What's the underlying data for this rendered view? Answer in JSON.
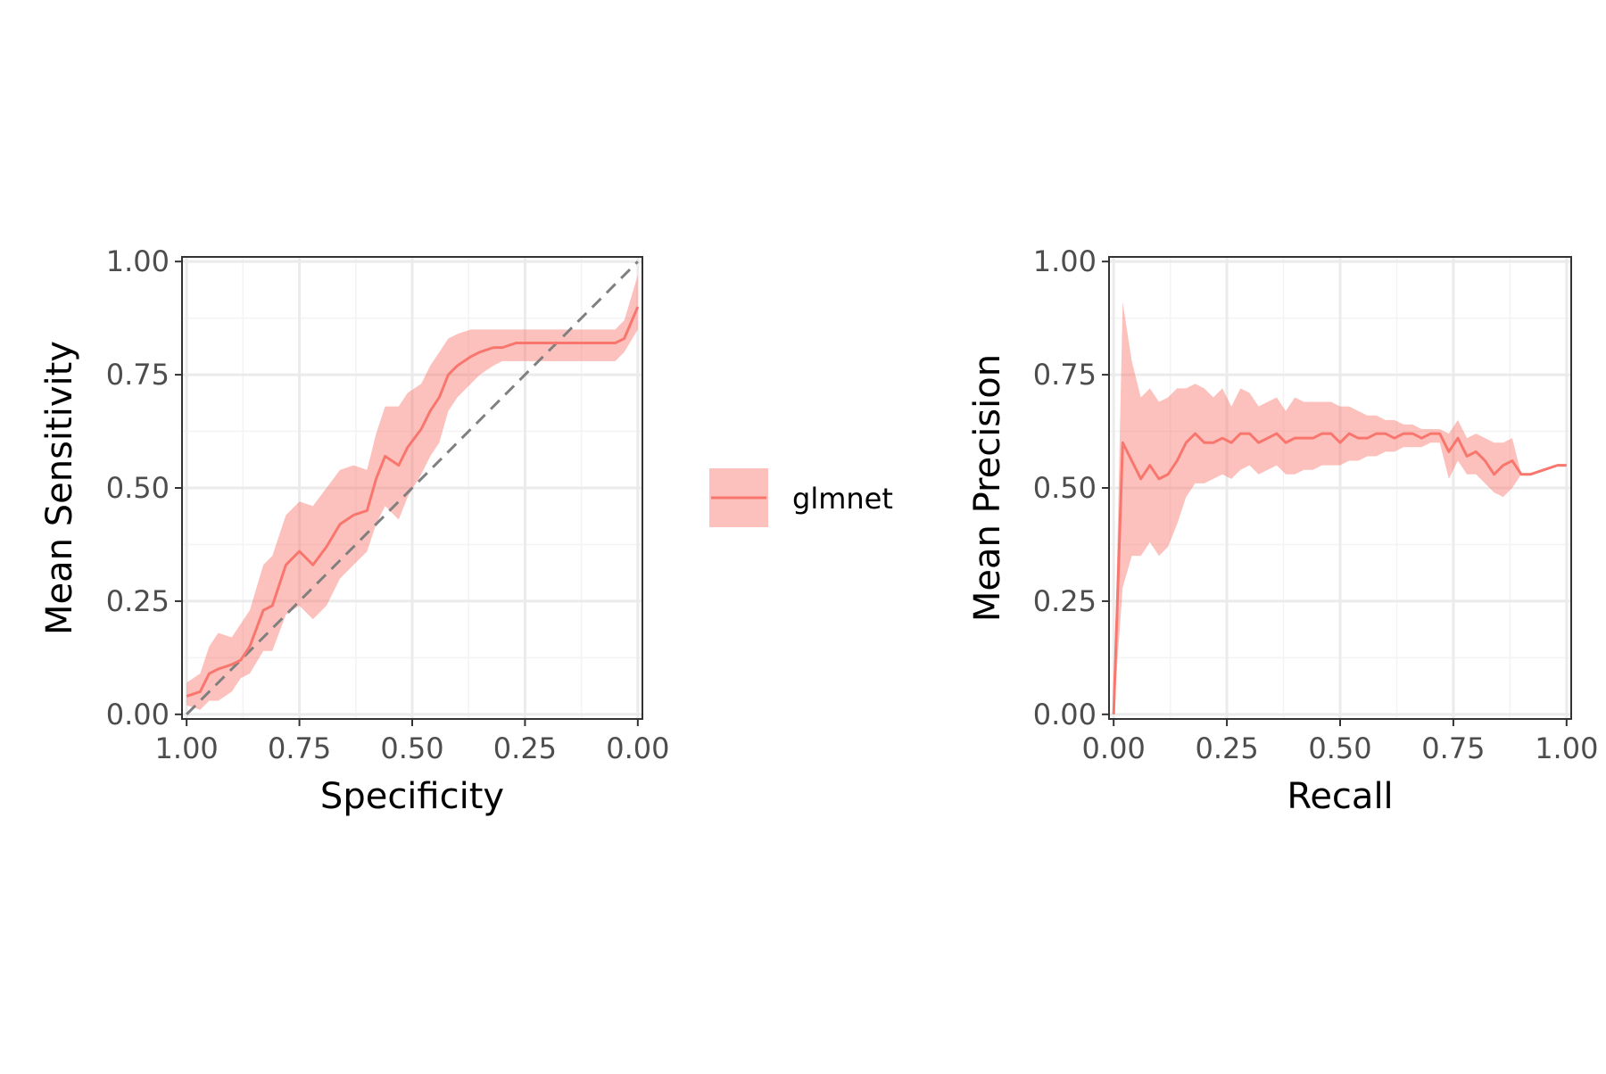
{
  "colors": {
    "series": "#F8766D",
    "ribbon": "#F8766D",
    "reference": "#808080",
    "grid_major": "#EBEBEB",
    "grid_minor": "#F3F3F3",
    "panel_border": "#333333"
  },
  "legend": {
    "position": "between panels",
    "label": "glmnet"
  },
  "chart_data": [
    {
      "type": "line",
      "xlabel": "Specificity",
      "ylabel": "Mean Sensitivity",
      "xlim": [
        1.0,
        0.0
      ],
      "ylim": [
        0.0,
        1.0
      ],
      "x_reversed": true,
      "grid": true,
      "xticks": [
        1.0,
        0.75,
        0.5,
        0.25,
        0.0
      ],
      "xtick_labels": [
        "1.00",
        "0.75",
        "0.50",
        "0.25",
        "0.00"
      ],
      "yticks": [
        0.0,
        0.25,
        0.5,
        0.75,
        1.0
      ],
      "ytick_labels": [
        "0.00",
        "0.25",
        "0.50",
        "0.75",
        "1.00"
      ],
      "reference_line": [
        [
          1.0,
          0.0
        ],
        [
          0.0,
          1.0
        ]
      ],
      "series": [
        {
          "name": "glmnet",
          "x": [
            1.0,
            0.97,
            0.95,
            0.93,
            0.9,
            0.88,
            0.86,
            0.83,
            0.81,
            0.78,
            0.75,
            0.72,
            0.69,
            0.66,
            0.63,
            0.6,
            0.58,
            0.56,
            0.53,
            0.51,
            0.48,
            0.46,
            0.44,
            0.42,
            0.4,
            0.37,
            0.35,
            0.32,
            0.3,
            0.27,
            0.25,
            0.22,
            0.2,
            0.17,
            0.15,
            0.12,
            0.1,
            0.07,
            0.05,
            0.03,
            0.0
          ],
          "y": [
            0.04,
            0.05,
            0.09,
            0.1,
            0.11,
            0.12,
            0.15,
            0.23,
            0.24,
            0.33,
            0.36,
            0.33,
            0.37,
            0.42,
            0.44,
            0.45,
            0.52,
            0.57,
            0.55,
            0.59,
            0.63,
            0.67,
            0.7,
            0.75,
            0.77,
            0.79,
            0.8,
            0.81,
            0.81,
            0.82,
            0.82,
            0.82,
            0.82,
            0.82,
            0.82,
            0.82,
            0.82,
            0.82,
            0.82,
            0.83,
            0.9
          ],
          "upper": [
            0.07,
            0.09,
            0.15,
            0.18,
            0.17,
            0.2,
            0.23,
            0.33,
            0.35,
            0.44,
            0.47,
            0.46,
            0.5,
            0.54,
            0.55,
            0.54,
            0.62,
            0.68,
            0.68,
            0.71,
            0.73,
            0.77,
            0.8,
            0.83,
            0.84,
            0.85,
            0.85,
            0.85,
            0.85,
            0.85,
            0.85,
            0.85,
            0.85,
            0.85,
            0.85,
            0.85,
            0.85,
            0.85,
            0.85,
            0.87,
            0.97
          ],
          "lower": [
            0.02,
            0.01,
            0.03,
            0.03,
            0.05,
            0.08,
            0.09,
            0.14,
            0.14,
            0.22,
            0.24,
            0.21,
            0.24,
            0.3,
            0.33,
            0.36,
            0.42,
            0.46,
            0.43,
            0.48,
            0.53,
            0.57,
            0.6,
            0.67,
            0.7,
            0.73,
            0.75,
            0.77,
            0.78,
            0.78,
            0.78,
            0.78,
            0.78,
            0.78,
            0.78,
            0.78,
            0.78,
            0.78,
            0.78,
            0.8,
            0.85
          ]
        }
      ]
    },
    {
      "type": "line",
      "xlabel": "Recall",
      "ylabel": "Mean Precision",
      "xlim": [
        0.0,
        1.0
      ],
      "ylim": [
        0.0,
        1.0
      ],
      "x_reversed": false,
      "grid": true,
      "xticks": [
        0.0,
        0.25,
        0.5,
        0.75,
        1.0
      ],
      "xtick_labels": [
        "0.00",
        "0.25",
        "0.50",
        "0.75",
        "1.00"
      ],
      "yticks": [
        0.0,
        0.25,
        0.5,
        0.75,
        1.0
      ],
      "ytick_labels": [
        "0.00",
        "0.25",
        "0.50",
        "0.75",
        "1.00"
      ],
      "series": [
        {
          "name": "glmnet",
          "x": [
            0.0,
            0.02,
            0.04,
            0.06,
            0.08,
            0.1,
            0.12,
            0.14,
            0.16,
            0.18,
            0.2,
            0.22,
            0.24,
            0.26,
            0.28,
            0.3,
            0.32,
            0.34,
            0.36,
            0.38,
            0.4,
            0.42,
            0.44,
            0.46,
            0.48,
            0.5,
            0.52,
            0.54,
            0.56,
            0.58,
            0.6,
            0.62,
            0.64,
            0.66,
            0.68,
            0.7,
            0.72,
            0.74,
            0.76,
            0.78,
            0.8,
            0.82,
            0.84,
            0.86,
            0.88,
            0.9,
            0.92,
            0.95,
            0.98,
            1.0
          ],
          "y": [
            0.0,
            0.6,
            0.56,
            0.52,
            0.55,
            0.52,
            0.53,
            0.56,
            0.6,
            0.62,
            0.6,
            0.6,
            0.61,
            0.6,
            0.62,
            0.62,
            0.6,
            0.61,
            0.62,
            0.6,
            0.61,
            0.61,
            0.61,
            0.62,
            0.62,
            0.6,
            0.62,
            0.61,
            0.61,
            0.62,
            0.62,
            0.61,
            0.62,
            0.62,
            0.61,
            0.62,
            0.62,
            0.58,
            0.61,
            0.57,
            0.58,
            0.56,
            0.53,
            0.55,
            0.56,
            0.53,
            0.53,
            0.54,
            0.55,
            0.55
          ],
          "upper": [
            0.0,
            0.91,
            0.78,
            0.7,
            0.72,
            0.69,
            0.7,
            0.72,
            0.72,
            0.73,
            0.72,
            0.7,
            0.72,
            0.68,
            0.72,
            0.71,
            0.68,
            0.69,
            0.7,
            0.67,
            0.7,
            0.69,
            0.69,
            0.69,
            0.69,
            0.68,
            0.68,
            0.67,
            0.66,
            0.66,
            0.65,
            0.65,
            0.64,
            0.64,
            0.63,
            0.63,
            0.63,
            0.62,
            0.65,
            0.61,
            0.62,
            0.61,
            0.6,
            0.6,
            0.61,
            0.53,
            0.53,
            0.54,
            0.55,
            0.55
          ],
          "lower": [
            0.0,
            0.28,
            0.35,
            0.35,
            0.38,
            0.35,
            0.37,
            0.42,
            0.48,
            0.51,
            0.51,
            0.52,
            0.53,
            0.52,
            0.54,
            0.55,
            0.53,
            0.54,
            0.55,
            0.53,
            0.53,
            0.54,
            0.54,
            0.55,
            0.55,
            0.55,
            0.56,
            0.56,
            0.57,
            0.57,
            0.58,
            0.58,
            0.59,
            0.59,
            0.59,
            0.6,
            0.6,
            0.52,
            0.56,
            0.53,
            0.53,
            0.51,
            0.49,
            0.48,
            0.5,
            0.53,
            0.53,
            0.54,
            0.55,
            0.55
          ]
        }
      ]
    }
  ]
}
